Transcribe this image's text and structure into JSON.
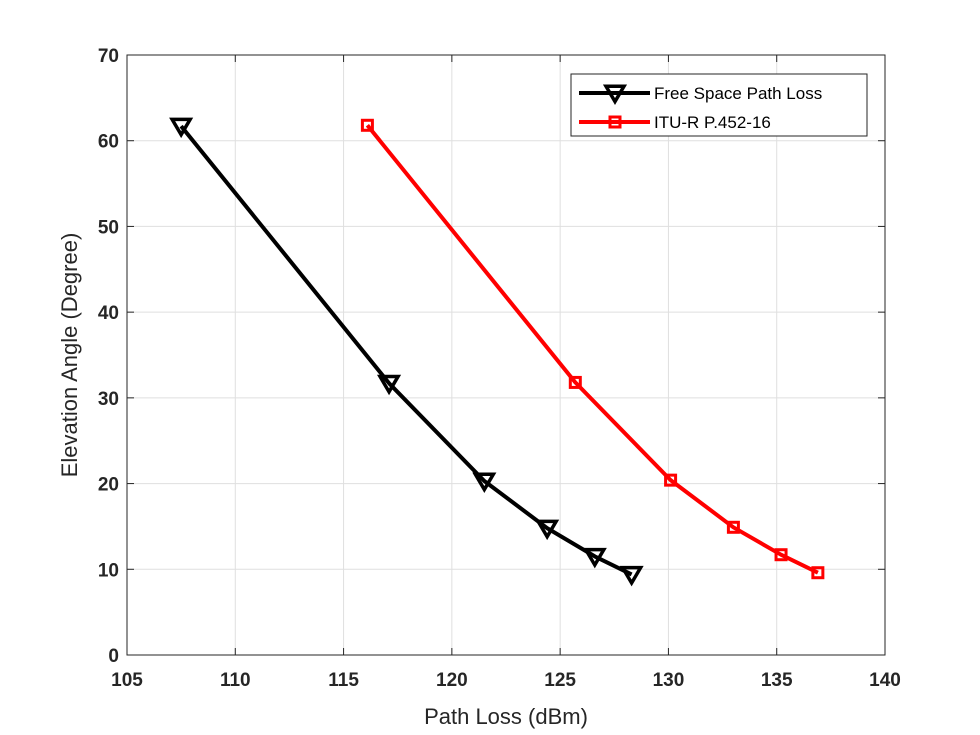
{
  "chart_data": {
    "type": "line",
    "xlabel": "Path Loss (dBm)",
    "ylabel": "Elevation Angle (Degree)",
    "xlim": [
      105,
      140
    ],
    "ylim": [
      0,
      70
    ],
    "x_ticks": [
      105,
      110,
      115,
      120,
      125,
      130,
      135,
      140
    ],
    "y_ticks": [
      0,
      10,
      20,
      30,
      40,
      50,
      60,
      70
    ],
    "grid": true,
    "legend_position": "top-right",
    "series": [
      {
        "name": "Free Space Path Loss",
        "color": "#000000",
        "marker": "down-triangle",
        "points": [
          {
            "x": 107.5,
            "y": 61.7
          },
          {
            "x": 117.1,
            "y": 31.7
          },
          {
            "x": 121.5,
            "y": 20.3
          },
          {
            "x": 124.4,
            "y": 14.8
          },
          {
            "x": 126.6,
            "y": 11.5
          },
          {
            "x": 128.3,
            "y": 9.4
          }
        ]
      },
      {
        "name": "ITU-R P.452-16",
        "color": "#ff0000",
        "marker": "square",
        "points": [
          {
            "x": 116.1,
            "y": 61.8
          },
          {
            "x": 125.7,
            "y": 31.8
          },
          {
            "x": 130.1,
            "y": 20.4
          },
          {
            "x": 133.0,
            "y": 14.9
          },
          {
            "x": 135.2,
            "y": 11.7
          },
          {
            "x": 136.9,
            "y": 9.6
          }
        ]
      }
    ]
  }
}
